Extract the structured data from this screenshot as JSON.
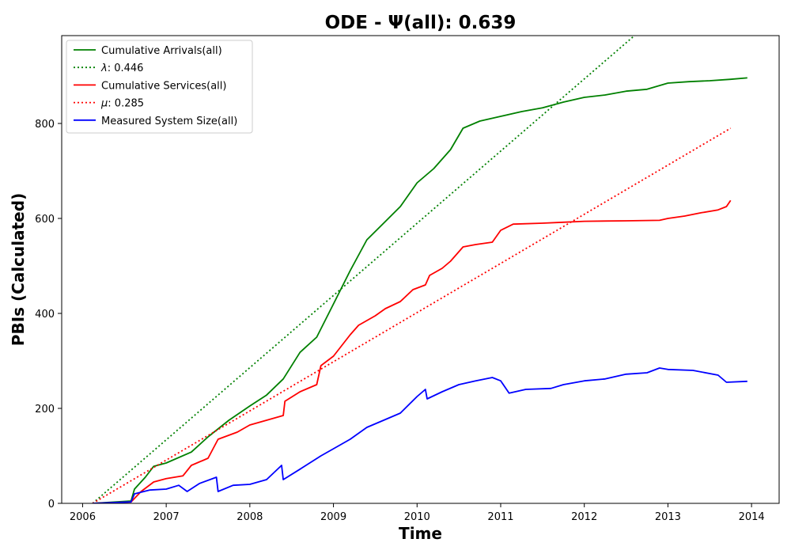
{
  "chart_data": {
    "type": "line",
    "title": "ODE -  Ψ(all): 0.639",
    "xlabel": "Time",
    "ylabel": "PBIs (Calculated)",
    "xlim": [
      2005.75,
      2014.33
    ],
    "ylim": [
      0,
      985
    ],
    "xticks": [
      2006,
      2007,
      2008,
      2009,
      2010,
      2011,
      2012,
      2013,
      2014
    ],
    "yticks": [
      0,
      200,
      400,
      600,
      800
    ],
    "grid": false,
    "legend_position": "top-left",
    "series": [
      {
        "name": "Cumulative Arrivals(all)",
        "color": "#008000",
        "style": "solid",
        "points": [
          [
            2006.12,
            0
          ],
          [
            2006.58,
            5
          ],
          [
            2006.62,
            30
          ],
          [
            2006.75,
            55
          ],
          [
            2006.85,
            78
          ],
          [
            2007.0,
            85
          ],
          [
            2007.3,
            108
          ],
          [
            2007.5,
            140
          ],
          [
            2007.75,
            175
          ],
          [
            2008.0,
            205
          ],
          [
            2008.2,
            228
          ],
          [
            2008.4,
            262
          ],
          [
            2008.6,
            318
          ],
          [
            2008.8,
            350
          ],
          [
            2009.0,
            420
          ],
          [
            2009.2,
            490
          ],
          [
            2009.4,
            555
          ],
          [
            2009.6,
            590
          ],
          [
            2009.8,
            625
          ],
          [
            2010.0,
            675
          ],
          [
            2010.2,
            705
          ],
          [
            2010.4,
            745
          ],
          [
            2010.55,
            790
          ],
          [
            2010.75,
            805
          ],
          [
            2011.0,
            815
          ],
          [
            2011.25,
            825
          ],
          [
            2011.5,
            833
          ],
          [
            2011.75,
            845
          ],
          [
            2012.0,
            855
          ],
          [
            2012.25,
            860
          ],
          [
            2012.5,
            868
          ],
          [
            2012.75,
            872
          ],
          [
            2013.0,
            885
          ],
          [
            2013.25,
            888
          ],
          [
            2013.5,
            890
          ],
          [
            2013.75,
            893
          ],
          [
            2013.95,
            896
          ]
        ]
      },
      {
        "name": "λ: 0.446",
        "name_symbol": "λ",
        "name_rest": ": 0.446",
        "color": "#008000",
        "style": "dotted",
        "points": [
          [
            2006.12,
            0
          ],
          [
            2012.6,
            985
          ]
        ]
      },
      {
        "name": "Cumulative Services(all)",
        "color": "#ff0000",
        "style": "solid",
        "points": [
          [
            2006.12,
            0
          ],
          [
            2006.58,
            3
          ],
          [
            2006.7,
            25
          ],
          [
            2006.85,
            45
          ],
          [
            2007.0,
            52
          ],
          [
            2007.2,
            58
          ],
          [
            2007.3,
            80
          ],
          [
            2007.5,
            95
          ],
          [
            2007.62,
            135
          ],
          [
            2007.85,
            150
          ],
          [
            2008.0,
            165
          ],
          [
            2008.2,
            175
          ],
          [
            2008.4,
            185
          ],
          [
            2008.42,
            215
          ],
          [
            2008.6,
            235
          ],
          [
            2008.8,
            250
          ],
          [
            2008.85,
            290
          ],
          [
            2009.0,
            310
          ],
          [
            2009.2,
            355
          ],
          [
            2009.3,
            375
          ],
          [
            2009.5,
            395
          ],
          [
            2009.62,
            410
          ],
          [
            2009.8,
            425
          ],
          [
            2009.95,
            450
          ],
          [
            2010.1,
            460
          ],
          [
            2010.15,
            480
          ],
          [
            2010.3,
            495
          ],
          [
            2010.4,
            510
          ],
          [
            2010.55,
            540
          ],
          [
            2010.7,
            545
          ],
          [
            2010.9,
            550
          ],
          [
            2011.0,
            575
          ],
          [
            2011.15,
            588
          ],
          [
            2011.5,
            590
          ],
          [
            2011.75,
            592
          ],
          [
            2012.0,
            594
          ],
          [
            2012.5,
            595
          ],
          [
            2012.9,
            596
          ],
          [
            2013.0,
            600
          ],
          [
            2013.2,
            605
          ],
          [
            2013.4,
            612
          ],
          [
            2013.6,
            618
          ],
          [
            2013.7,
            625
          ],
          [
            2013.75,
            638
          ]
        ]
      },
      {
        "name": "μ: 0.285",
        "name_symbol": "μ",
        "name_rest": ": 0.285",
        "color": "#ff0000",
        "style": "dotted",
        "points": [
          [
            2006.12,
            0
          ],
          [
            2013.75,
            790
          ]
        ]
      },
      {
        "name": "Measured System Size(all)",
        "color": "#0000ff",
        "style": "solid",
        "points": [
          [
            2006.12,
            0
          ],
          [
            2006.58,
            3
          ],
          [
            2006.62,
            20
          ],
          [
            2006.8,
            28
          ],
          [
            2007.0,
            30
          ],
          [
            2007.15,
            38
          ],
          [
            2007.25,
            25
          ],
          [
            2007.4,
            42
          ],
          [
            2007.6,
            55
          ],
          [
            2007.62,
            25
          ],
          [
            2007.8,
            38
          ],
          [
            2008.0,
            40
          ],
          [
            2008.2,
            50
          ],
          [
            2008.38,
            80
          ],
          [
            2008.4,
            50
          ],
          [
            2008.6,
            72
          ],
          [
            2008.85,
            100
          ],
          [
            2009.0,
            115
          ],
          [
            2009.2,
            135
          ],
          [
            2009.4,
            160
          ],
          [
            2009.6,
            175
          ],
          [
            2009.8,
            190
          ],
          [
            2010.0,
            225
          ],
          [
            2010.1,
            240
          ],
          [
            2010.12,
            220
          ],
          [
            2010.3,
            235
          ],
          [
            2010.5,
            250
          ],
          [
            2010.7,
            258
          ],
          [
            2010.9,
            265
          ],
          [
            2011.0,
            258
          ],
          [
            2011.1,
            232
          ],
          [
            2011.3,
            240
          ],
          [
            2011.6,
            242
          ],
          [
            2011.75,
            250
          ],
          [
            2012.0,
            258
          ],
          [
            2012.25,
            262
          ],
          [
            2012.5,
            272
          ],
          [
            2012.75,
            275
          ],
          [
            2012.9,
            285
          ],
          [
            2013.0,
            282
          ],
          [
            2013.3,
            280
          ],
          [
            2013.6,
            270
          ],
          [
            2013.7,
            255
          ],
          [
            2013.95,
            257
          ]
        ]
      }
    ]
  }
}
